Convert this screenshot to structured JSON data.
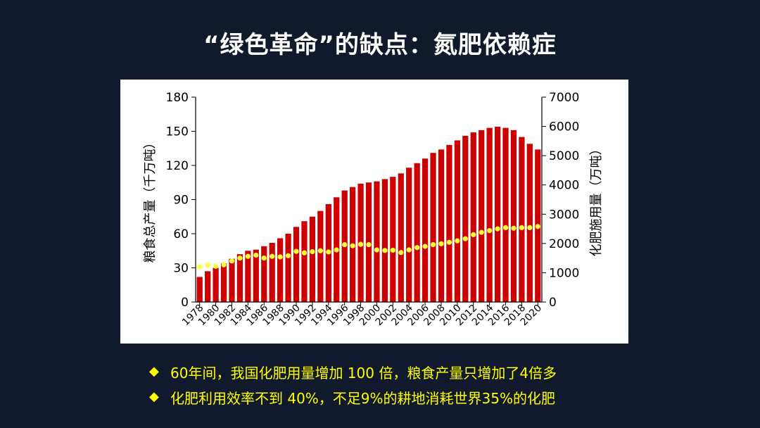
{
  "slide": {
    "title": "“绿色革命”的缺点：氮肥依赖症",
    "bullets": [
      "60年间，我国化肥用量增加 100 倍，粮食产量只增加了4倍多",
      "化肥利用效率不到 40%，不足9%的耕地消耗世界35%的化肥"
    ]
  },
  "colors": {
    "background": "#111a2c",
    "bar": "#cc0000",
    "line_point": "#ffff33",
    "text_highlight": "#ffff00"
  },
  "chart_data": {
    "type": "bar",
    "title": "",
    "ylabel": "粮食总产量（千万吨）",
    "y2label": "化肥施用量（万吨）",
    "ylim": [
      0,
      180
    ],
    "y2lim": [
      0,
      7000
    ],
    "y_ticks": [
      "0",
      "30",
      "60",
      "90",
      "120",
      "150",
      "180"
    ],
    "y2_ticks": [
      "0",
      "1000",
      "2000",
      "3000",
      "4000",
      "5000",
      "6000",
      "7000"
    ],
    "categories": [
      "1978",
      "1979",
      "1980",
      "1981",
      "1982",
      "1983",
      "1984",
      "1985",
      "1986",
      "1987",
      "1988",
      "1989",
      "1990",
      "1991",
      "1992",
      "1993",
      "1994",
      "1995",
      "1996",
      "1997",
      "1998",
      "1999",
      "2000",
      "2001",
      "2002",
      "2003",
      "2004",
      "2005",
      "2006",
      "2007",
      "2008",
      "2009",
      "2010",
      "2011",
      "2012",
      "2013",
      "2014",
      "2015",
      "2016",
      "2017",
      "2018",
      "2019",
      "2020"
    ],
    "x_tick_labels": [
      "1978",
      "1980",
      "1982",
      "1984",
      "1986",
      "1988",
      "1990",
      "1992",
      "1994",
      "1996",
      "1998",
      "2000",
      "2002",
      "2004",
      "2006",
      "2008",
      "2010",
      "2012",
      "2014",
      "2016",
      "2018",
      "2020"
    ],
    "series": [
      {
        "axis": "left",
        "kind": "bar",
        "values": [
          22,
          27,
          30,
          34,
          38,
          42,
          45,
          46,
          49,
          52,
          56,
          60,
          66,
          71,
          75,
          80,
          86,
          92,
          98,
          101,
          104,
          105,
          106,
          108,
          110,
          113,
          118,
          122,
          126,
          131,
          134,
          138,
          142,
          146,
          149,
          151,
          153,
          154,
          153,
          151,
          145,
          139,
          134
        ]
      },
      {
        "axis": "right",
        "kind": "scatter",
        "values": [
          1200,
          1260,
          1220,
          1270,
          1400,
          1500,
          1560,
          1600,
          1500,
          1560,
          1540,
          1580,
          1730,
          1680,
          1720,
          1750,
          1710,
          1780,
          1960,
          1920,
          1970,
          1960,
          1780,
          1760,
          1770,
          1690,
          1780,
          1860,
          1900,
          1960,
          1990,
          2040,
          2090,
          2160,
          2300,
          2380,
          2440,
          2500,
          2540,
          2520,
          2540,
          2540,
          2580
        ]
      }
    ]
  }
}
